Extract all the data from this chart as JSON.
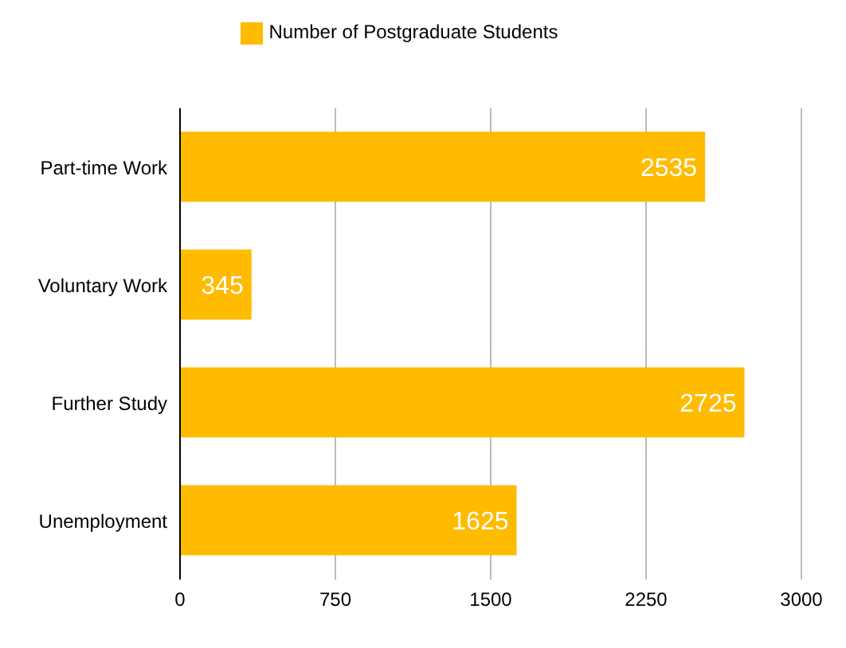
{
  "chart_data": {
    "type": "bar",
    "orientation": "horizontal",
    "categories": [
      "Part-time Work",
      "Voluntary Work",
      "Further Study",
      "Unemployment"
    ],
    "series": [
      {
        "name": "Number of Postgraduate Students",
        "color": "#ffbb00",
        "values": [
          2535,
          345,
          2725,
          1625
        ]
      }
    ],
    "xlim": [
      0,
      3000
    ],
    "xticks": [
      0,
      750,
      1500,
      2250,
      3000
    ],
    "grid": "x",
    "legend": "top",
    "data_labels": true
  }
}
